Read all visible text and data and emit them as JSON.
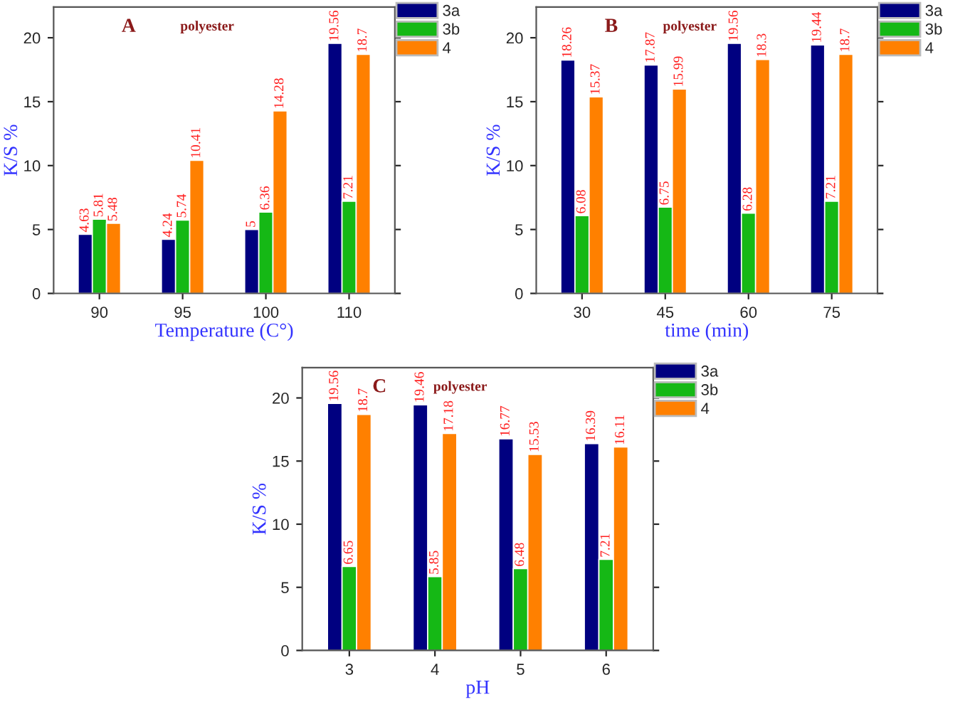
{
  "chart_data": [
    {
      "type": "bar",
      "title": "A",
      "subtitle": "polyester",
      "xlabel": "Temperature (C°)",
      "ylabel": "K/S %",
      "categories": [
        "90",
        "95",
        "100",
        "110"
      ],
      "series": [
        {
          "name": "3a",
          "color": "#000080",
          "values": [
            4.63,
            4.24,
            5,
            19.56
          ]
        },
        {
          "name": "3b",
          "color": "#15b815",
          "values": [
            5.81,
            5.74,
            6.36,
            7.21
          ]
        },
        {
          "name": "4",
          "color": "#ff8000",
          "values": [
            5.48,
            10.41,
            14.28,
            18.7
          ]
        }
      ],
      "ylim": [
        0,
        22.4
      ],
      "yticks": [
        0,
        5,
        10,
        15,
        20
      ],
      "data_labels": true,
      "legend": "right",
      "grid": false
    },
    {
      "type": "bar",
      "title": "B",
      "subtitle": "polyester",
      "xlabel": "time (min)",
      "ylabel": "K/S %",
      "categories": [
        "30",
        "45",
        "60",
        "75"
      ],
      "series": [
        {
          "name": "3a",
          "color": "#000080",
          "values": [
            18.26,
            17.87,
            19.56,
            19.44
          ]
        },
        {
          "name": "3b",
          "color": "#15b815",
          "values": [
            6.08,
            6.75,
            6.28,
            7.21
          ]
        },
        {
          "name": "4",
          "color": "#ff8000",
          "values": [
            15.37,
            15.99,
            18.3,
            18.7
          ]
        }
      ],
      "ylim": [
        0,
        22.4
      ],
      "yticks": [
        0,
        5,
        10,
        15,
        20
      ],
      "data_labels": true,
      "legend": "right",
      "grid": false
    },
    {
      "type": "bar",
      "title": "C",
      "subtitle": "polyester",
      "xlabel": "pH",
      "ylabel": "K/S %",
      "categories": [
        "3",
        "4",
        "5",
        "6"
      ],
      "series": [
        {
          "name": "3a",
          "color": "#000080",
          "values": [
            19.56,
            19.46,
            16.77,
            16.39
          ]
        },
        {
          "name": "3b",
          "color": "#15b815",
          "values": [
            6.65,
            5.85,
            6.48,
            7.21
          ]
        },
        {
          "name": "4",
          "color": "#ff8000",
          "values": [
            18.7,
            17.18,
            15.53,
            16.11
          ]
        }
      ],
      "ylim": [
        0,
        22.4
      ],
      "yticks": [
        0,
        5,
        10,
        15,
        20
      ],
      "data_labels": true,
      "legend": "right",
      "grid": false
    }
  ]
}
